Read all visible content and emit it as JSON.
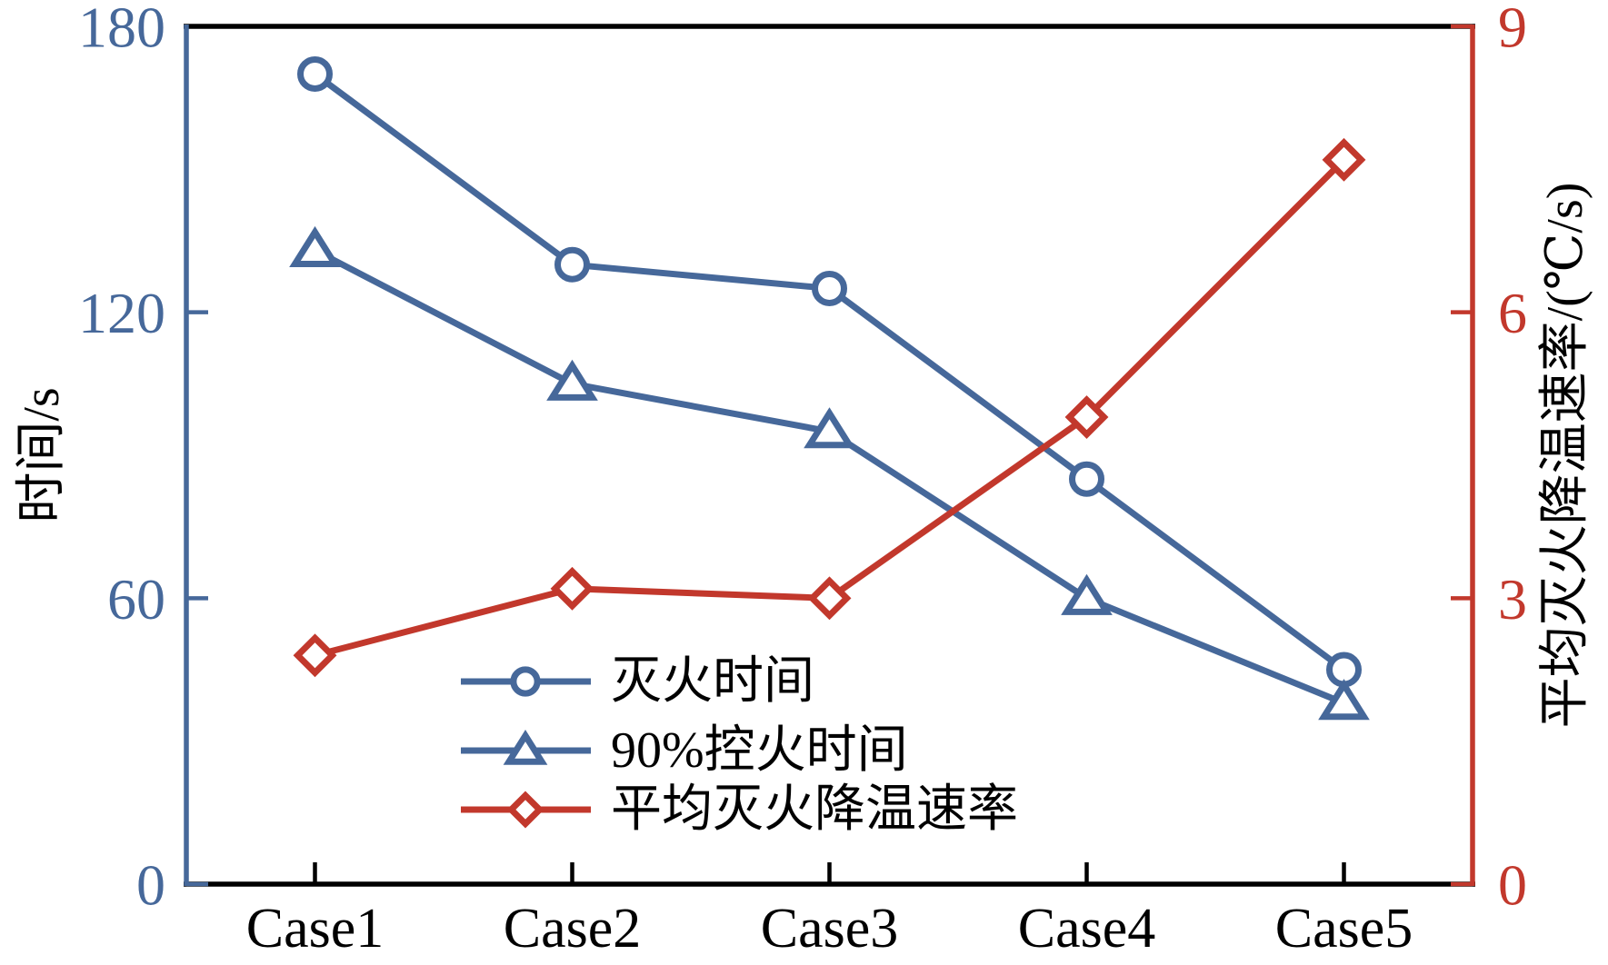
{
  "chart_data": {
    "type": "line",
    "title": "",
    "categories": [
      "Case1",
      "Case2",
      "Case3",
      "Case4",
      "Case5"
    ],
    "series": [
      {
        "name": "灭火时间",
        "slug": "extinguishing-time",
        "axis": "left",
        "marker": "circle",
        "color": "#46689a",
        "values": [
          170,
          130,
          125,
          85,
          45
        ]
      },
      {
        "name": "90%控火时间",
        "slug": "fire-control-time-90pct",
        "axis": "left",
        "marker": "triangle",
        "color": "#46689a",
        "values": [
          133,
          105,
          95,
          60,
          38
        ]
      },
      {
        "name": "平均灭火降温速率",
        "slug": "avg-cooling-rate",
        "axis": "right",
        "marker": "diamond",
        "color": "#c2382c",
        "values": [
          2.4,
          3.1,
          3.0,
          4.9,
          7.6
        ]
      }
    ],
    "left_axis": {
      "label": "时间/s",
      "range": [
        0,
        180
      ],
      "tick_labels": [
        "0",
        "60",
        "120",
        "180"
      ],
      "tick_values": [
        0,
        60,
        120,
        180
      ],
      "tick_mark_values": [
        0,
        60,
        120
      ],
      "color": "#46689a",
      "label_color": "#000000"
    },
    "right_axis": {
      "label": "平均灭火降温速率/(℃/s)",
      "range": [
        0,
        9
      ],
      "tick_labels": [
        "0",
        "3",
        "6",
        "9"
      ],
      "tick_values": [
        0,
        3,
        6,
        9
      ],
      "tick_mark_values": [
        0,
        3,
        6,
        9
      ],
      "color": "#c2382c",
      "label_color": "#000000"
    },
    "x_axis": {
      "labels": [
        "Case1",
        "Case2",
        "Case3",
        "Case4",
        "Case5"
      ],
      "color": "#000000"
    },
    "legend": {
      "position": "inside-bottom-center",
      "items": [
        "灭火时间",
        "90%控火时间",
        "平均灭火降温速率"
      ]
    },
    "grid": false,
    "background": "#ffffff"
  }
}
